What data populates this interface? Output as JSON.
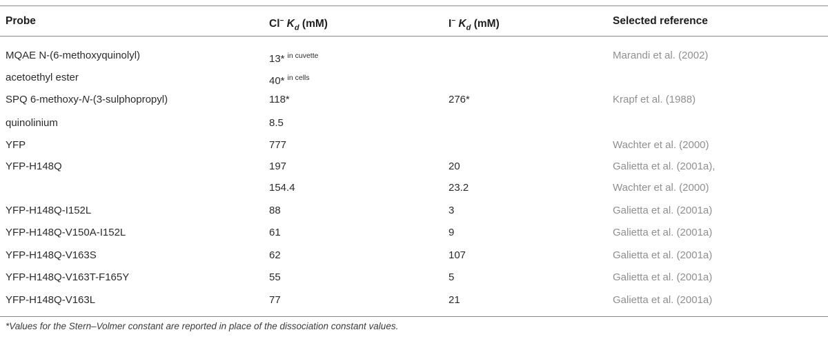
{
  "header": {
    "probe": "Probe",
    "cl_kd_prefix": "Cl",
    "cl_kd_sup": "−",
    "cl_kd_symbol": "K",
    "cl_kd_sub": "d",
    "cl_kd_unit": "(mM)",
    "i_kd_prefix": "I",
    "i_kd_sup": "−",
    "i_kd_symbol": "K",
    "i_kd_sub": "d",
    "i_kd_unit": "(mM)",
    "reference": "Selected reference"
  },
  "rows": [
    {
      "probe": "MQAE N-(6-methoxyquinolyl)",
      "cl": "13*",
      "cl_note": "in cuvette",
      "i": "",
      "ref": "Marandi et al. (2002)"
    },
    {
      "probe": "acetoethyl ester",
      "cl": "40*",
      "cl_note": "in cells",
      "i": "",
      "ref": ""
    },
    {
      "probe_a": "SPQ 6-methoxy-",
      "probe_b": "N",
      "probe_c": "-(3-sulphopropyl)",
      "cl": "118*",
      "cl_note": "",
      "i": "276*",
      "ref": "Krapf et al. (1988)"
    },
    {
      "probe": "quinolinium",
      "cl": "8.5",
      "cl_note": "",
      "i": "",
      "ref": ""
    },
    {
      "probe": "YFP",
      "cl": "777",
      "cl_note": "",
      "i": "",
      "ref": "Wachter et al. (2000)"
    },
    {
      "probe": "YFP-H148Q",
      "cl": "197",
      "cl_note": "",
      "i": "20",
      "ref": "Galietta et al. (2001a),"
    },
    {
      "probe": "",
      "cl": "154.4",
      "cl_note": "",
      "i": "23.2",
      "ref": "Wachter et al. (2000)"
    },
    {
      "probe": "YFP-H148Q-I152L",
      "cl": "88",
      "cl_note": "",
      "i": "3",
      "ref": "Galietta et al. (2001a)"
    },
    {
      "probe": "YFP-H148Q-V150A-I152L",
      "cl": "61",
      "cl_note": "",
      "i": "9",
      "ref": "Galietta et al. (2001a)"
    },
    {
      "probe": "YFP-H148Q-V163S",
      "cl": "62",
      "cl_note": "",
      "i": "107",
      "ref": "Galietta et al. (2001a)"
    },
    {
      "probe": "YFP-H148Q-V163T-F165Y",
      "cl": "55",
      "cl_note": "",
      "i": "5",
      "ref": "Galietta et al. (2001a)"
    },
    {
      "probe": "YFP-H148Q-V163L",
      "cl": "77",
      "cl_note": "",
      "i": "21",
      "ref": "Galietta et al. (2001a)"
    }
  ],
  "footnote": "*Values for the Stern–Volmer constant are reported in place of the dissociation constant values."
}
